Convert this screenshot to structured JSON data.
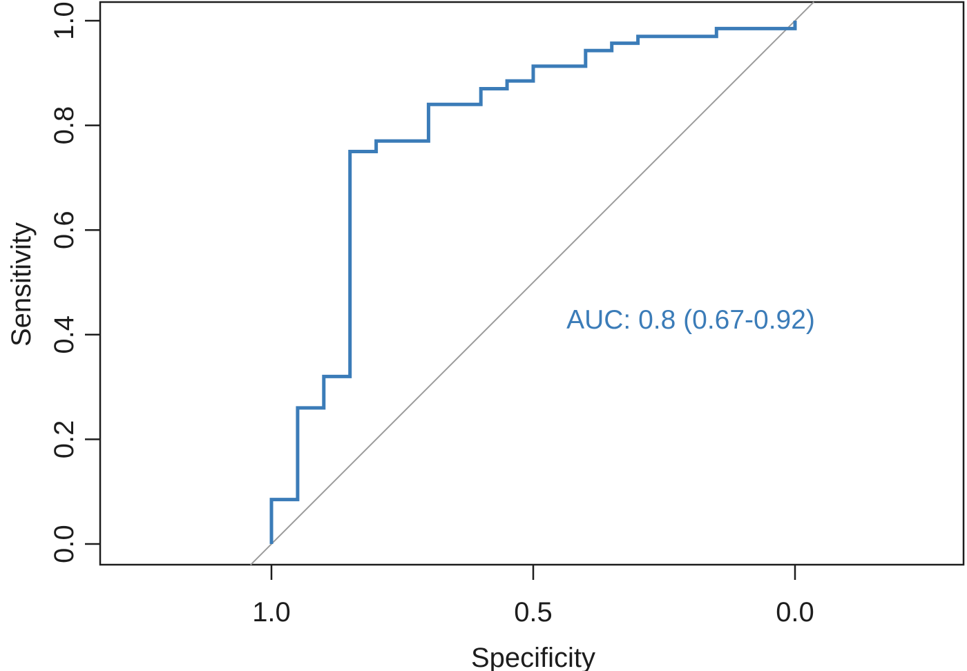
{
  "chart_data": {
    "type": "line",
    "subtype": "roc-step-curve",
    "title": "",
    "xlabel": "Specificity",
    "ylabel": "Sensitivity",
    "x_ticks": [
      1.0,
      0.5,
      0.0
    ],
    "x_tick_labels": [
      "1.0",
      "0.5",
      "0.0"
    ],
    "y_ticks": [
      0.0,
      0.2,
      0.4,
      0.6,
      0.8,
      1.0
    ],
    "y_tick_labels": [
      "0.0",
      "0.2",
      "0.4",
      "0.6",
      "0.8",
      "1.0"
    ],
    "xlim": [
      1.04,
      -0.04
    ],
    "ylim": [
      -0.04,
      1.04
    ],
    "x_axis_reversed": true,
    "grid": false,
    "legend": "none",
    "auc": {
      "value": 0.8,
      "ci_low": 0.67,
      "ci_high": 0.92
    },
    "annotations": [
      {
        "text": "AUC: 0.8 (0.67-0.92)",
        "x_specificity": 0.2,
        "y_sensitivity": 0.43,
        "color": "#3b7cb8"
      }
    ],
    "series": [
      {
        "name": "ROC curve",
        "color": "#3b7cb8",
        "line_width": 5,
        "points": [
          [
            1.0,
            0.0
          ],
          [
            1.0,
            0.085
          ],
          [
            0.95,
            0.085
          ],
          [
            0.95,
            0.26
          ],
          [
            0.9,
            0.26
          ],
          [
            0.9,
            0.32
          ],
          [
            0.85,
            0.32
          ],
          [
            0.85,
            0.75
          ],
          [
            0.8,
            0.75
          ],
          [
            0.8,
            0.77
          ],
          [
            0.7,
            0.77
          ],
          [
            0.7,
            0.84
          ],
          [
            0.6,
            0.84
          ],
          [
            0.6,
            0.87
          ],
          [
            0.55,
            0.87
          ],
          [
            0.55,
            0.885
          ],
          [
            0.5,
            0.885
          ],
          [
            0.5,
            0.913
          ],
          [
            0.4,
            0.913
          ],
          [
            0.4,
            0.943
          ],
          [
            0.35,
            0.943
          ],
          [
            0.35,
            0.957
          ],
          [
            0.3,
            0.957
          ],
          [
            0.3,
            0.97
          ],
          [
            0.15,
            0.97
          ],
          [
            0.15,
            0.985
          ],
          [
            0.0,
            0.985
          ],
          [
            0.0,
            1.0
          ]
        ]
      },
      {
        "name": "Chance diagonal",
        "color": "#9b9b9b",
        "line_width": 2,
        "points": [
          [
            1.04,
            -0.04
          ],
          [
            -0.036,
            1.036
          ]
        ]
      }
    ],
    "colors": {
      "axis": "#1d1d1d",
      "text": "#1d1d1d",
      "background": "#ffffff"
    }
  }
}
